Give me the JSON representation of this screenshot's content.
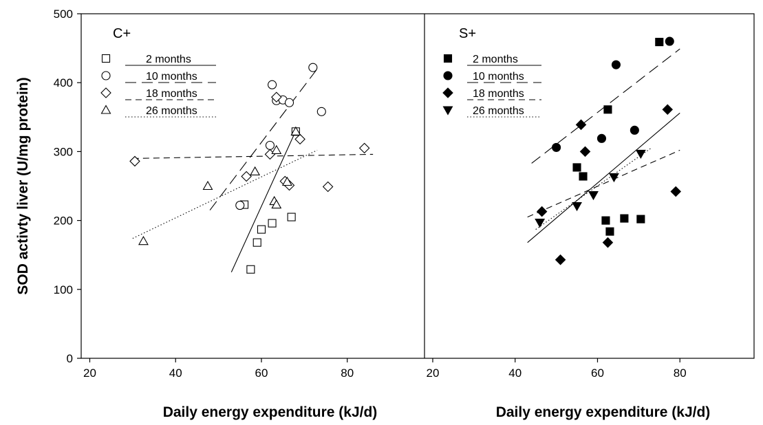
{
  "chart_data": [
    {
      "type": "scatter",
      "panel_label": "C+",
      "xlabel": "Daily energy expenditure (kJ/d)",
      "ylabel": "SOD activty liver (U/mg protein)",
      "xlim": [
        18,
        98
      ],
      "ylim": [
        0,
        500
      ],
      "xticks": [
        20,
        40,
        60,
        80
      ],
      "yticks": [
        0,
        100,
        200,
        300,
        400,
        500
      ],
      "legend_position": "top-left",
      "marker_fill": "open",
      "series": [
        {
          "name": "2 months",
          "marker": "square",
          "line": "solid",
          "points": [
            [
              56,
              223
            ],
            [
              57.5,
              129
            ],
            [
              59,
              168
            ],
            [
              60,
              187
            ],
            [
              62.5,
              196
            ],
            [
              67,
              205
            ],
            [
              68,
              329
            ]
          ],
          "fit": [
            [
              53,
              125
            ],
            [
              68,
              330
            ]
          ]
        },
        {
          "name": "10 months",
          "marker": "circle",
          "line": "long-dash",
          "points": [
            [
              55,
              222
            ],
            [
              62,
              309
            ],
            [
              62.5,
              397
            ],
            [
              63.5,
              374
            ],
            [
              65,
              375
            ],
            [
              66.5,
              371
            ],
            [
              72,
              422
            ],
            [
              74,
              358
            ]
          ],
          "fit": [
            [
              48,
              215
            ],
            [
              73,
              420
            ]
          ]
        },
        {
          "name": "18 months",
          "marker": "diamond",
          "line": "medium-dash",
          "points": [
            [
              30.5,
              286
            ],
            [
              56.5,
              264
            ],
            [
              62,
              296
            ],
            [
              63.5,
              379
            ],
            [
              65.5,
              257
            ],
            [
              66.5,
              251
            ],
            [
              69,
              318
            ],
            [
              75.5,
              249
            ],
            [
              84,
              305
            ]
          ],
          "fit": [
            [
              30,
              290
            ],
            [
              86,
              296
            ]
          ]
        },
        {
          "name": "26 months",
          "marker": "triangle-up",
          "line": "dotted",
          "points": [
            [
              32.5,
              170
            ],
            [
              47.5,
              250
            ],
            [
              58.5,
              271
            ],
            [
              63,
              228
            ],
            [
              63.5,
              223
            ],
            [
              63.5,
              302
            ],
            [
              66,
              256
            ],
            [
              68,
              329
            ]
          ],
          "fit": [
            [
              30,
              174
            ],
            [
              73,
              302
            ]
          ]
        }
      ]
    },
    {
      "type": "scatter",
      "panel_label": "S+",
      "xlabel": "Daily energy expenditure (kJ/d)",
      "xlim": [
        18,
        98
      ],
      "ylim": [
        0,
        500
      ],
      "xticks": [
        20,
        40,
        60,
        80
      ],
      "legend_position": "top-left",
      "marker_fill": "filled",
      "series": [
        {
          "name": "2 months",
          "marker": "square",
          "line": "solid",
          "points": [
            [
              55,
              277
            ],
            [
              56.5,
              264
            ],
            [
              62,
              200
            ],
            [
              62.5,
              361
            ],
            [
              63,
              184
            ],
            [
              66.5,
              203
            ],
            [
              70.5,
              202
            ],
            [
              75,
              459
            ]
          ],
          "fit": [
            [
              43,
              168
            ],
            [
              80,
              356
            ]
          ]
        },
        {
          "name": "10 months",
          "marker": "circle",
          "line": "long-dash",
          "points": [
            [
              50,
              306
            ],
            [
              61,
              319
            ],
            [
              64.5,
              426
            ],
            [
              69,
              331
            ],
            [
              77.5,
              460
            ]
          ],
          "fit": [
            [
              44,
              283
            ],
            [
              80,
              449
            ]
          ]
        },
        {
          "name": "18 months",
          "marker": "diamond",
          "line": "medium-dash",
          "points": [
            [
              46.5,
              213
            ],
            [
              51,
              143
            ],
            [
              56,
              339
            ],
            [
              57,
              300
            ],
            [
              62.5,
              168
            ],
            [
              77,
              361
            ],
            [
              79,
              242
            ]
          ],
          "fit": [
            [
              43,
              205
            ],
            [
              80,
              302
            ]
          ]
        },
        {
          "name": "26 months",
          "marker": "triangle-down",
          "line": "dotted",
          "points": [
            [
              46,
              197
            ],
            [
              55,
              221
            ],
            [
              59,
              237
            ],
            [
              64,
              263
            ],
            [
              70.5,
              297
            ]
          ],
          "fit": [
            [
              45,
              187
            ],
            [
              73,
              305
            ]
          ]
        }
      ]
    }
  ]
}
